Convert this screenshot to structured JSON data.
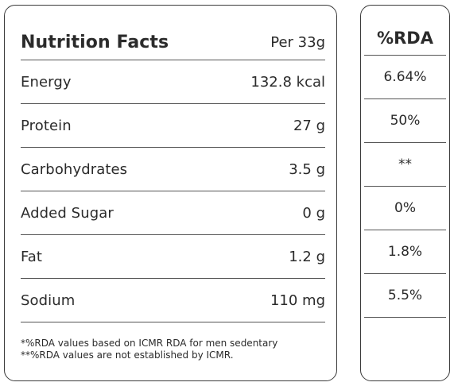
{
  "facts": {
    "title": "Nutrition Facts",
    "serving": "Per 33g",
    "rows": [
      {
        "label": "Energy",
        "value": "132.8 kcal"
      },
      {
        "label": "Protein",
        "value": "27 g"
      },
      {
        "label": "Carbohydrates",
        "value": "3.5 g"
      },
      {
        "label": "Added Sugar",
        "value": "0 g"
      },
      {
        "label": "Fat",
        "value": "1.2 g"
      },
      {
        "label": "Sodium",
        "value": "110 mg"
      }
    ],
    "footnotes": [
      "*%RDA values based on ICMR RDA for men sedentary",
      "**%RDA values are not established by ICMR."
    ]
  },
  "rda": {
    "header": "%RDA",
    "values": [
      "6.64%",
      "50%",
      "**",
      "0%",
      "1.8%",
      "5.5%"
    ]
  }
}
